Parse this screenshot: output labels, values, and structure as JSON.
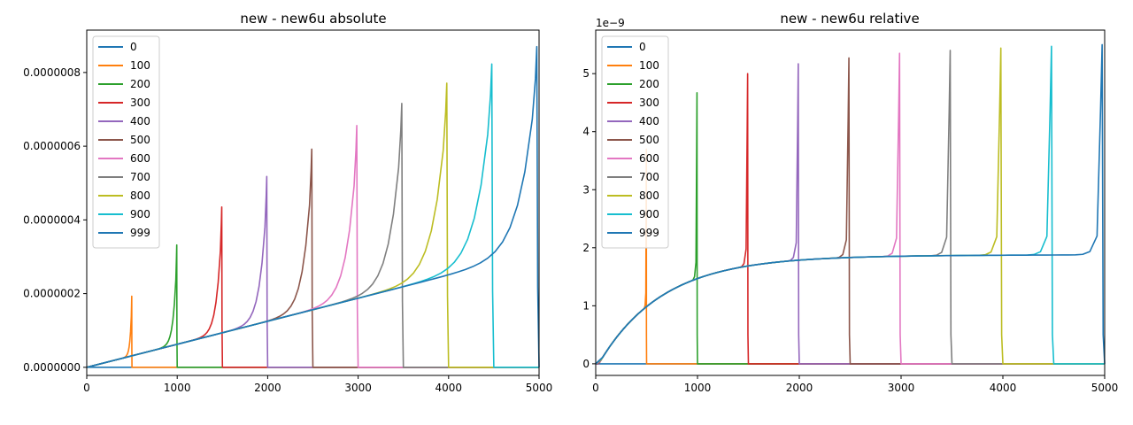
{
  "chart_data": [
    {
      "type": "line",
      "title": "new - new6u absolute",
      "xlim": [
        0,
        5000
      ],
      "ylim": [
        -2.2e-08,
        9.15e-07
      ],
      "x_ticks": [
        "0",
        "1000",
        "2000",
        "3000",
        "4000",
        "5000"
      ],
      "y_ticks": [
        "0.0000000",
        "0.0000002",
        "0.0000004",
        "0.0000006",
        "0.0000008"
      ],
      "y_tick_values": [
        0,
        2e-07,
        4e-07,
        6e-07,
        8e-07
      ],
      "scale_label": "",
      "legend_position": "upper-left",
      "series": [
        {
          "name": "0",
          "color": "#1f77b4",
          "end": 5000,
          "peak": 8.7e-07
        },
        {
          "name": "100",
          "color": "#ff7f0e",
          "end": 500,
          "peak": 1.93e-07
        },
        {
          "name": "200",
          "color": "#2ca02c",
          "end": 1000,
          "peak": 3.32e-07
        },
        {
          "name": "300",
          "color": "#d62728",
          "end": 1500,
          "peak": 4.35e-07
        },
        {
          "name": "400",
          "color": "#9467bd",
          "end": 2000,
          "peak": 5.18e-07
        },
        {
          "name": "500",
          "color": "#8c564b",
          "end": 2500,
          "peak": 5.92e-07
        },
        {
          "name": "600",
          "color": "#e377c2",
          "end": 3000,
          "peak": 6.56e-07
        },
        {
          "name": "700",
          "color": "#7f7f7f",
          "end": 3500,
          "peak": 7.16e-07
        },
        {
          "name": "800",
          "color": "#bcbd22",
          "end": 4000,
          "peak": 7.71e-07
        },
        {
          "name": "900",
          "color": "#17becf",
          "end": 4500,
          "peak": 8.23e-07
        },
        {
          "name": "999",
          "color": "#1f77b4",
          "end": 5000,
          "peak": 8.7e-07
        }
      ]
    },
    {
      "type": "line",
      "title": "new - new6u relative",
      "xlim": [
        0,
        5000
      ],
      "ylim": [
        -0.2,
        5.75
      ],
      "x_ticks": [
        "0",
        "1000",
        "2000",
        "3000",
        "4000",
        "5000"
      ],
      "y_ticks": [
        "0",
        "1",
        "2",
        "3",
        "4",
        "5"
      ],
      "y_tick_values": [
        0,
        1,
        2,
        3,
        4,
        5
      ],
      "scale_label": "1e−9",
      "legend_position": "upper-left",
      "series": [
        {
          "name": "0",
          "color": "#1f77b4",
          "end": 5000,
          "peak": 5.5
        },
        {
          "name": "100",
          "color": "#ff7f0e",
          "end": 500,
          "peak": 3.7
        },
        {
          "name": "200",
          "color": "#2ca02c",
          "end": 1000,
          "peak": 4.67
        },
        {
          "name": "300",
          "color": "#d62728",
          "end": 1500,
          "peak": 5.0
        },
        {
          "name": "400",
          "color": "#9467bd",
          "end": 2000,
          "peak": 5.17
        },
        {
          "name": "500",
          "color": "#8c564b",
          "end": 2500,
          "peak": 5.27
        },
        {
          "name": "600",
          "color": "#e377c2",
          "end": 3000,
          "peak": 5.35
        },
        {
          "name": "700",
          "color": "#7f7f7f",
          "end": 3500,
          "peak": 5.4
        },
        {
          "name": "800",
          "color": "#bcbd22",
          "end": 4000,
          "peak": 5.44
        },
        {
          "name": "900",
          "color": "#17becf",
          "end": 4500,
          "peak": 5.47
        },
        {
          "name": "999",
          "color": "#1f77b4",
          "end": 5000,
          "peak": 5.5
        }
      ]
    }
  ]
}
